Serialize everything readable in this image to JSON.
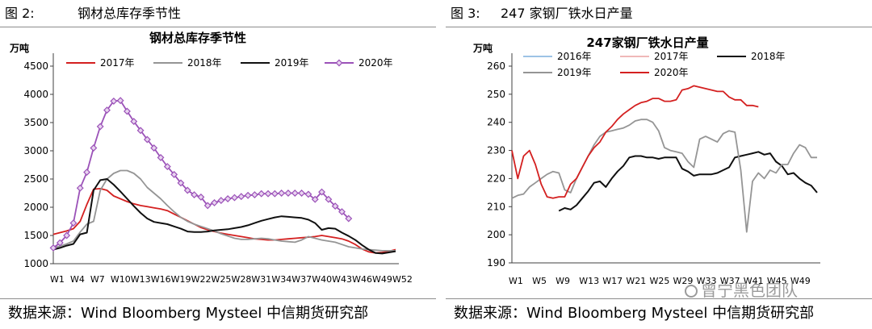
{
  "left_figure": {
    "figure_number": "图 2:",
    "figure_title": "钢材总库存季节性",
    "source": "数据来源：Wind Bloomberg Mysteel 中信期货研究部"
  },
  "right_figure": {
    "figure_number": "图 3:",
    "figure_title": "247 家钢厂铁水日产量",
    "source": "数据来源：Wind Bloomberg Mysteel 中信期货研究部"
  },
  "watermark": "曾宁黑色团队",
  "colors": {
    "red": "#d42020",
    "gray": "#959595",
    "black": "#101010",
    "purple": "#9b52b8",
    "pink": "#f0b8b8",
    "lightblue": "#9dc3e6"
  },
  "chart_data": [
    {
      "type": "line",
      "title": "钢材总库存季节性",
      "ylabel": "万吨",
      "ylim": [
        1000,
        4500
      ],
      "yticks": [
        "1000",
        "1500",
        "2000",
        "2500",
        "3000",
        "3500",
        "4000",
        "4500"
      ],
      "xticks": [
        "W1",
        "W4",
        "W7",
        "W10",
        "W13",
        "W16",
        "W19",
        "W22",
        "W25",
        "W28",
        "W31",
        "W34",
        "W37",
        "W40",
        "W43",
        "W46",
        "W49",
        "W52"
      ],
      "week_range": [
        1,
        52
      ],
      "legend_position": "top",
      "series": [
        {
          "name": "2017年",
          "color": "red",
          "weeks_start": 1,
          "values": [
            1520,
            1550,
            1580,
            1620,
            1750,
            2050,
            2320,
            2330,
            2300,
            2200,
            2150,
            2100,
            2060,
            2030,
            2010,
            1990,
            1970,
            1940,
            1880,
            1820,
            1760,
            1700,
            1640,
            1600,
            1570,
            1540,
            1520,
            1500,
            1480,
            1460,
            1440,
            1430,
            1420,
            1420,
            1430,
            1440,
            1450,
            1460,
            1470,
            1480,
            1500,
            1480,
            1460,
            1440,
            1400,
            1340,
            1260,
            1210,
            1190,
            1200,
            1220,
            1250
          ]
        },
        {
          "name": "2018年",
          "color": "gray",
          "weeks_start": 1,
          "values": [
            1280,
            1310,
            1350,
            1400,
            1560,
            1700,
            1750,
            2300,
            2500,
            2600,
            2650,
            2650,
            2600,
            2500,
            2350,
            2250,
            2150,
            2030,
            1920,
            1820,
            1750,
            1700,
            1660,
            1620,
            1580,
            1530,
            1490,
            1450,
            1430,
            1430,
            1440,
            1450,
            1440,
            1420,
            1400,
            1390,
            1380,
            1420,
            1480,
            1450,
            1420,
            1400,
            1380,
            1340,
            1300,
            1280,
            1260,
            1250,
            1240,
            1230,
            1230,
            1230
          ]
        },
        {
          "name": "2019年",
          "color": "black",
          "weeks_start": 1,
          "values": [
            1250,
            1280,
            1320,
            1350,
            1520,
            1550,
            2300,
            2480,
            2500,
            2400,
            2280,
            2150,
            2020,
            1900,
            1800,
            1740,
            1720,
            1700,
            1660,
            1620,
            1570,
            1560,
            1560,
            1570,
            1590,
            1600,
            1610,
            1630,
            1650,
            1680,
            1720,
            1760,
            1790,
            1820,
            1840,
            1830,
            1820,
            1810,
            1780,
            1720,
            1600,
            1630,
            1620,
            1550,
            1490,
            1420,
            1330,
            1250,
            1190,
            1180,
            1200,
            1220
          ]
        },
        {
          "name": "2020年",
          "color": "purple",
          "weeks_start": 1,
          "values": [
            1280,
            1370,
            1500,
            1720,
            2340,
            2620,
            3050,
            3430,
            3720,
            3880,
            3890,
            3700,
            3520,
            3360,
            3200,
            3050,
            2880,
            2720,
            2580,
            2430,
            2300,
            2220,
            2180,
            2030,
            2080,
            2120,
            2150,
            2170,
            2190,
            2210,
            2220,
            2240,
            2240,
            2240,
            2250,
            2250,
            2250,
            2250,
            2230,
            2140,
            2270,
            2140,
            2020,
            1920,
            1800
          ]
        }
      ]
    },
    {
      "type": "line",
      "title": "247家钢厂铁水日产量",
      "ylabel": "万吨",
      "ylim": [
        190,
        260
      ],
      "yticks": [
        "190",
        "200",
        "210",
        "220",
        "230",
        "240",
        "250",
        "260"
      ],
      "xticks": [
        "W1",
        "W5",
        "W9",
        "W13",
        "W17",
        "W21",
        "W25",
        "W29",
        "W33",
        "W37",
        "W41",
        "W45",
        "W49"
      ],
      "week_range": [
        1,
        53
      ],
      "legend_position": "top",
      "series": [
        {
          "name": "2016年",
          "color": "lightblue",
          "weeks_start": 1,
          "values": []
        },
        {
          "name": "2017年",
          "color": "pink",
          "weeks_start": 1,
          "values": []
        },
        {
          "name": "2018年",
          "color": "black",
          "weeks_start": 9,
          "values": [
            208.5,
            209.5,
            209,
            210.5,
            213,
            215.5,
            218.5,
            219,
            217,
            220,
            222.5,
            224.5,
            227.5,
            228,
            228,
            227.5,
            227.5,
            227,
            227.5,
            227.5,
            227.5,
            223.5,
            222.5,
            221,
            221.5,
            221.5,
            221.5,
            222,
            223,
            224,
            227.5,
            228,
            228.5,
            229,
            229.5,
            228.5,
            229,
            226,
            224.5,
            221.5,
            222,
            220,
            218.5,
            217.5,
            215
          ]
        },
        {
          "name": "2019年",
          "color": "gray",
          "weeks_start": 1,
          "values": [
            213,
            214,
            214.5,
            217,
            218.5,
            220,
            221.5,
            222.5,
            222,
            216,
            215,
            220,
            224,
            228,
            232,
            235,
            236.5,
            237,
            237.5,
            238,
            239,
            240.5,
            241,
            241,
            240,
            237,
            231,
            230,
            229.5,
            229,
            226,
            224,
            234,
            235,
            234,
            233,
            236,
            237,
            236.5,
            223,
            201,
            219,
            222,
            220,
            223,
            222,
            225,
            225,
            229,
            232,
            231,
            227.5,
            227.5
          ]
        },
        {
          "name": "2020年",
          "color": "red",
          "weeks_start": 1,
          "values": [
            230,
            220,
            228,
            230,
            225,
            218,
            213.5,
            213,
            213.5,
            213.5,
            218,
            220,
            224,
            228,
            231,
            233,
            236.5,
            238.5,
            241,
            243,
            244.5,
            246,
            247,
            247.5,
            248.5,
            248.5,
            247.5,
            247.5,
            248,
            251.5,
            252,
            253,
            252.5,
            252,
            251.5,
            251,
            251,
            249,
            248,
            248,
            246,
            246,
            245.5
          ]
        }
      ]
    }
  ]
}
